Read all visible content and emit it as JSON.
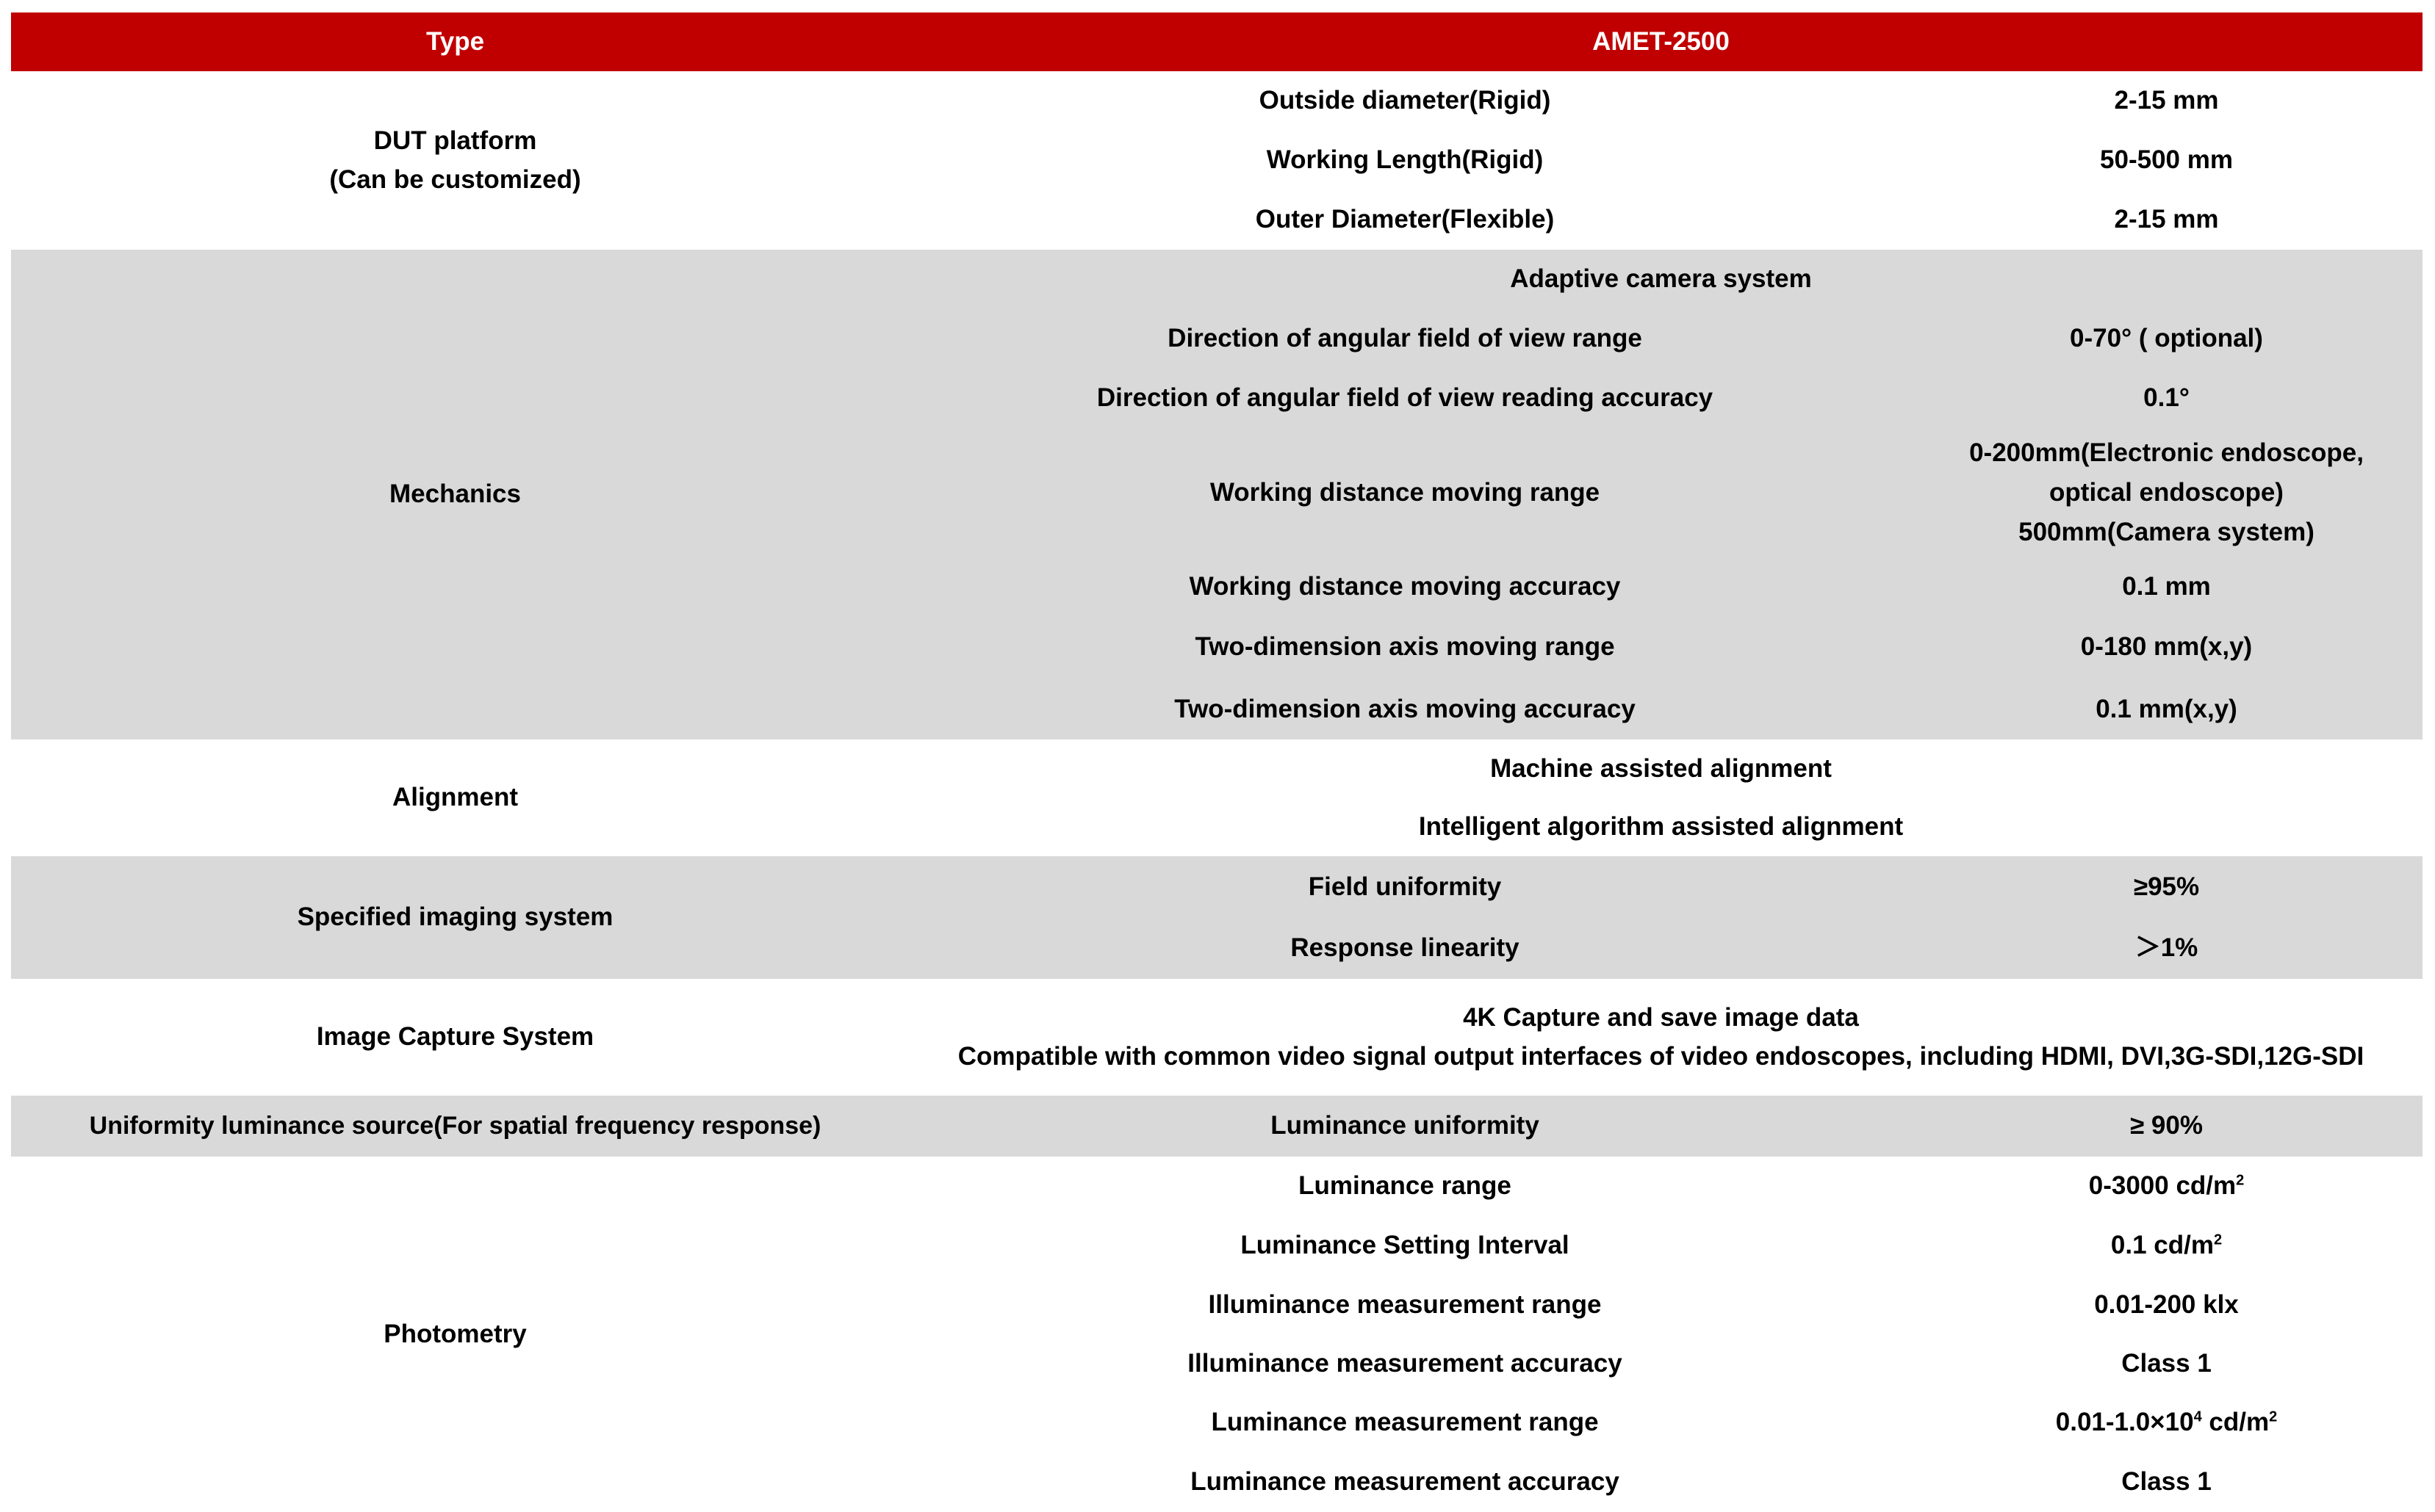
{
  "header": {
    "type_label": "Type",
    "model_label": "AMET-2500"
  },
  "colors": {
    "header_bg": "#c00000",
    "shaded_row_bg": "#d9d9d9"
  },
  "dut": {
    "label_line1": "DUT platform",
    "label_line2": "(Can be customized)",
    "rows": [
      {
        "param": "Outside diameter(Rigid)",
        "value": "2-15 mm"
      },
      {
        "param": "Working Length(Rigid)",
        "value": "50-500 mm"
      },
      {
        "param": "Outer Diameter(Flexible)",
        "value": "2-15 mm"
      }
    ]
  },
  "mechanics": {
    "label": "Mechanics",
    "adaptive": "Adaptive camera system",
    "rows": [
      {
        "param": "Direction of angular field of view range",
        "value": "0-70° ( optional)"
      },
      {
        "param": "Direction of angular field of view reading accuracy",
        "value": "0.1°"
      },
      {
        "param": "Working distance moving range",
        "value_line1": "0-200mm(Electronic endoscope,",
        "value_line2": "optical endoscope)",
        "value_line3": "500mm(Camera system)"
      },
      {
        "param": "Working distance moving accuracy",
        "value": "0.1 mm"
      },
      {
        "param": "Two-dimension axis moving range",
        "value": "0-180 mm(x,y)"
      },
      {
        "param": "Two-dimension axis moving accuracy",
        "value": "0.1 mm(x,y)"
      }
    ]
  },
  "alignment": {
    "label": "Alignment",
    "items": [
      "Machine assisted alignment",
      "Intelligent algorithm assisted alignment"
    ]
  },
  "imaging": {
    "label": "Specified imaging system",
    "rows": [
      {
        "param": "Field uniformity",
        "value": "≥95%"
      },
      {
        "param": "Response linearity",
        "value": "＞1%"
      }
    ]
  },
  "capture": {
    "label": "Image Capture System",
    "line1": "4K Capture and save image data",
    "line2": "Compatible with common video signal output interfaces of video endoscopes, including HDMI, DVI,3G-SDI,12G-SDI"
  },
  "uniformity": {
    "label": "Uniformity luminance source(For spatial frequency response)",
    "param": "Luminance uniformity",
    "value": "≥ 90%"
  },
  "photometry": {
    "label": "Photometry",
    "rows": [
      {
        "param": "Luminance range",
        "value": "0-3000 cd/m",
        "sup": "2"
      },
      {
        "param": "Luminance Setting Interval",
        "value": "0.1 cd/m",
        "sup": "2"
      },
      {
        "param": "Illuminance measurement range",
        "value": "0.01-200 klx"
      },
      {
        "param": "Illuminance measurement accuracy",
        "value": "Class 1"
      },
      {
        "param": "Luminance measurement range",
        "value": "0.01-1.0×10",
        "sup": "4",
        "value_tail": " cd/m",
        "sup2": "2"
      },
      {
        "param": "Luminance measurement accuracy",
        "value": "Class 1"
      }
    ]
  }
}
